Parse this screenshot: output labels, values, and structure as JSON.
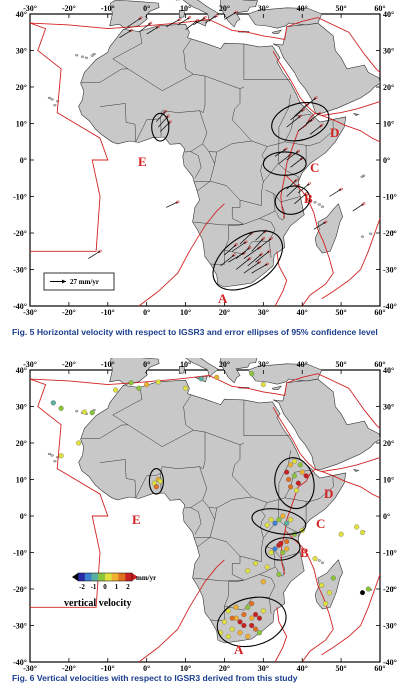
{
  "figures": [
    {
      "id": "fig5",
      "caption": "Fig. 5 Horizontal velocity with respect to IGSR3 and error ellipses of 95% confidence level",
      "lon_ticks": [
        "-30°",
        "-20°",
        "-10°",
        "0°",
        "10°",
        "20°",
        "30°",
        "40°",
        "50°",
        "60°"
      ],
      "lat_ticks": [
        "40°",
        "30°",
        "20°",
        "10°",
        "0°",
        "-10°",
        "-20°",
        "-30°",
        "-40°"
      ],
      "zones": [
        "A",
        "B",
        "C",
        "D",
        "E"
      ],
      "scale_label": "27 mm/yr"
    },
    {
      "id": "fig6",
      "caption": "Fig. 6 Vertical velocities with respect to IGSR3 derived from this study",
      "lon_ticks": [
        "-30°",
        "-20°",
        "-10°",
        "0°",
        "10°",
        "20°",
        "30°",
        "40°",
        "50°",
        "60°"
      ],
      "lat_ticks": [
        "40°",
        "30°",
        "20°",
        "10°",
        "0°",
        "-10°",
        "-20°",
        "-30°",
        "-40°"
      ],
      "zones": [
        "A",
        "B",
        "C",
        "D",
        "E"
      ],
      "colorbar": {
        "ticks": [
          "-2",
          "-1",
          "0",
          "1",
          "2"
        ],
        "unit": "mm/yr",
        "label": "vertical velocity",
        "colors": [
          "#2a2aa8",
          "#3f7fd0",
          "#59b0a0",
          "#8cc43a",
          "#e0e040",
          "#f0b030",
          "#e07020",
          "#c82020"
        ]
      }
    }
  ],
  "colors": {
    "land": "#c8c8c8",
    "ocean": "#ffffff",
    "plate_boundary": "#d22222",
    "zone_label": "#d22222",
    "caption": "#1a3d8f"
  }
}
